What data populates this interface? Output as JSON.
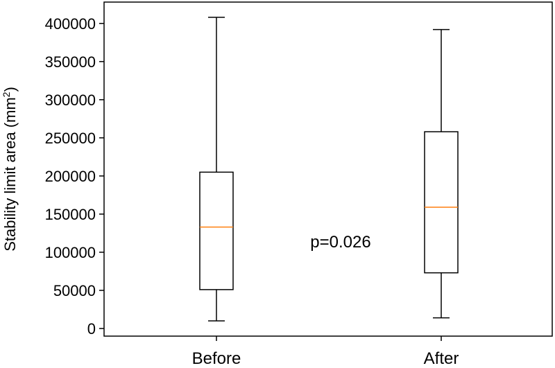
{
  "chart_data": {
    "type": "box",
    "categories": [
      "Before",
      "After"
    ],
    "series": [
      {
        "name": "Before",
        "whisker_low": 10000,
        "q1": 51000,
        "median": 133000,
        "q3": 205000,
        "whisker_high": 408000
      },
      {
        "name": "After",
        "whisker_low": 14000,
        "q1": 73000,
        "median": 159000,
        "q3": 258000,
        "whisker_high": 392000
      }
    ],
    "ylabel": "Stability limit area (mm",
    "ylabel_sup": "2",
    "ylabel_close": ")",
    "xlabel": "",
    "ylim": [
      -10000,
      428000
    ],
    "yticks": [
      0,
      50000,
      100000,
      150000,
      200000,
      250000,
      300000,
      350000,
      400000
    ],
    "ytick_labels": [
      "0",
      "50000",
      "100000",
      "150000",
      "200000",
      "250000",
      "300000",
      "350000",
      "400000"
    ],
    "annotation": "p=0.026",
    "grid": false,
    "colors": {
      "box": "#000000",
      "median": "#ff7f0e"
    }
  }
}
